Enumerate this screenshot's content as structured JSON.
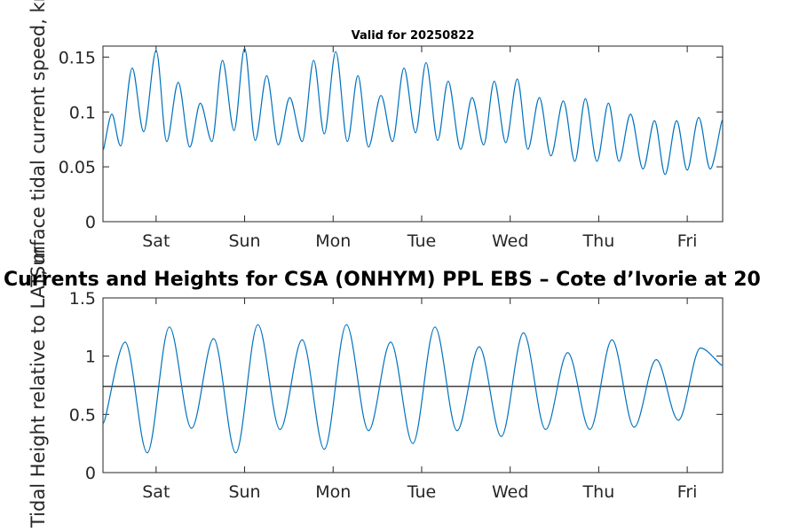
{
  "chart_data": [
    {
      "type": "line",
      "title": "Valid for 20250822",
      "ylabel": "Surface tidal current speed, kn",
      "xlim": [
        0,
        7
      ],
      "ylim": [
        0,
        0.16
      ],
      "yticks": [
        0,
        0.05,
        0.1,
        0.15
      ],
      "ytick_labels": [
        "0",
        "0.05",
        "0.1",
        "0.15"
      ],
      "xticks": [
        0.6,
        1.6,
        2.6,
        3.6,
        4.6,
        5.6,
        6.6
      ],
      "xtick_labels": [
        "Sat",
        "Sun",
        "Mon",
        "Tue",
        "Wed",
        "Thu",
        "Fri"
      ],
      "grid": false,
      "series": [
        {
          "color": "#0072BD",
          "x": [
            0.0,
            0.1,
            0.2,
            0.33,
            0.46,
            0.6,
            0.72,
            0.85,
            0.98,
            1.1,
            1.23,
            1.35,
            1.48,
            1.6,
            1.72,
            1.85,
            1.98,
            2.11,
            2.25,
            2.38,
            2.5,
            2.63,
            2.76,
            2.88,
            3.0,
            3.14,
            3.27,
            3.4,
            3.53,
            3.65,
            3.78,
            3.9,
            4.04,
            4.17,
            4.3,
            4.42,
            4.55,
            4.68,
            4.8,
            4.93,
            5.06,
            5.2,
            5.33,
            5.45,
            5.58,
            5.71,
            5.83,
            5.96,
            6.1,
            6.23,
            6.35,
            6.48,
            6.6,
            6.73,
            6.86,
            7.0
          ],
          "y": [
            0.065,
            0.098,
            0.069,
            0.14,
            0.082,
            0.156,
            0.073,
            0.127,
            0.068,
            0.108,
            0.073,
            0.147,
            0.083,
            0.158,
            0.074,
            0.133,
            0.07,
            0.113,
            0.073,
            0.147,
            0.08,
            0.155,
            0.073,
            0.133,
            0.068,
            0.115,
            0.073,
            0.14,
            0.081,
            0.145,
            0.074,
            0.128,
            0.066,
            0.113,
            0.07,
            0.128,
            0.072,
            0.13,
            0.066,
            0.113,
            0.06,
            0.11,
            0.055,
            0.112,
            0.055,
            0.108,
            0.055,
            0.098,
            0.048,
            0.092,
            0.043,
            0.092,
            0.047,
            0.095,
            0.048,
            0.093
          ]
        }
      ]
    },
    {
      "type": "line",
      "title": "Currents and Heights for CSA (ONHYM) PPL EBS  – Cote d’Ivorie at 20",
      "ylabel": "Tidal Height relative to LAT, m",
      "xlim": [
        0,
        7
      ],
      "ylim": [
        0,
        1.5
      ],
      "yticks": [
        0,
        0.5,
        1,
        1.5
      ],
      "ytick_labels": [
        "0",
        "0.5",
        "1",
        "1.5"
      ],
      "xticks": [
        0.6,
        1.6,
        2.6,
        3.6,
        4.6,
        5.6,
        6.6
      ],
      "xtick_labels": [
        "Sat",
        "Sun",
        "Mon",
        "Tue",
        "Wed",
        "Thu",
        "Fri"
      ],
      "grid": false,
      "reference_line": {
        "y": 0.74,
        "color": "#000000"
      },
      "series": [
        {
          "color": "#0072BD",
          "x": [
            0.0,
            0.25,
            0.5,
            0.75,
            1.0,
            1.25,
            1.5,
            1.75,
            2.0,
            2.25,
            2.5,
            2.75,
            3.0,
            3.25,
            3.5,
            3.75,
            4.0,
            4.25,
            4.5,
            4.75,
            5.0,
            5.25,
            5.5,
            5.75,
            6.0,
            6.25,
            6.5,
            6.75,
            7.0
          ],
          "y": [
            0.42,
            1.12,
            0.17,
            1.25,
            0.38,
            1.15,
            0.17,
            1.27,
            0.37,
            1.14,
            0.2,
            1.27,
            0.36,
            1.12,
            0.25,
            1.25,
            0.36,
            1.08,
            0.31,
            1.2,
            0.37,
            1.03,
            0.37,
            1.14,
            0.39,
            0.97,
            0.45,
            1.07,
            0.92
          ]
        }
      ]
    }
  ]
}
